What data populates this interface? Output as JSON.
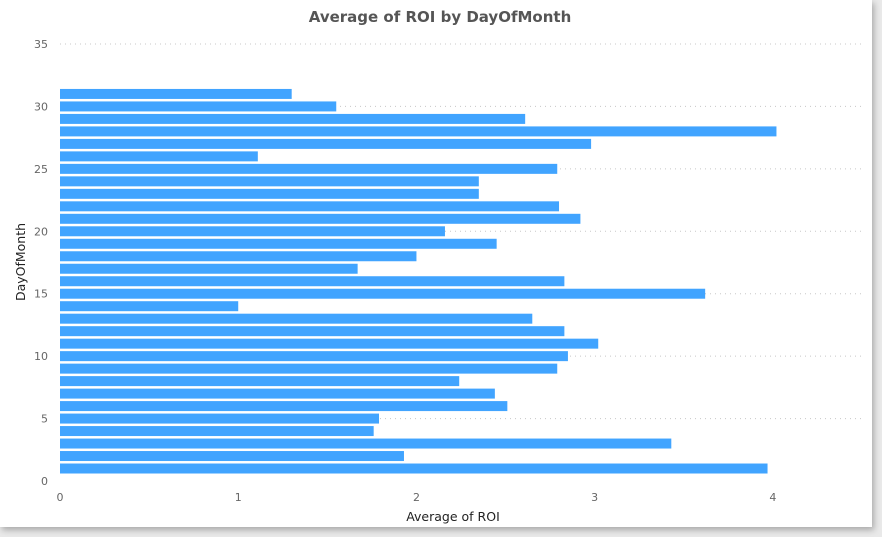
{
  "chart_data": {
    "type": "bar",
    "orientation": "horizontal",
    "title": "Average of ROI by DayOfMonth",
    "xlabel": "Average of ROI",
    "ylabel": "DayOfMonth",
    "xlim": [
      0,
      4.5
    ],
    "ylim": [
      0,
      35
    ],
    "x_ticks": [
      0,
      1,
      2,
      3,
      4
    ],
    "y_ticks": [
      0,
      5,
      10,
      15,
      20,
      25,
      30,
      35
    ],
    "grid": true,
    "bar_color": "#41a4ff",
    "categories": [
      1,
      2,
      3,
      4,
      5,
      6,
      7,
      8,
      9,
      10,
      11,
      12,
      13,
      14,
      15,
      16,
      17,
      18,
      19,
      20,
      21,
      22,
      23,
      24,
      25,
      26,
      27,
      28,
      29,
      30,
      31
    ],
    "values": [
      3.97,
      1.93,
      3.43,
      1.76,
      1.79,
      2.51,
      2.44,
      2.24,
      2.79,
      2.85,
      3.02,
      2.83,
      2.65,
      1.0,
      3.62,
      2.83,
      1.67,
      2.0,
      2.45,
      2.16,
      2.92,
      2.8,
      2.35,
      2.35,
      2.79,
      1.11,
      2.98,
      4.02,
      2.61,
      1.55,
      1.3
    ]
  }
}
